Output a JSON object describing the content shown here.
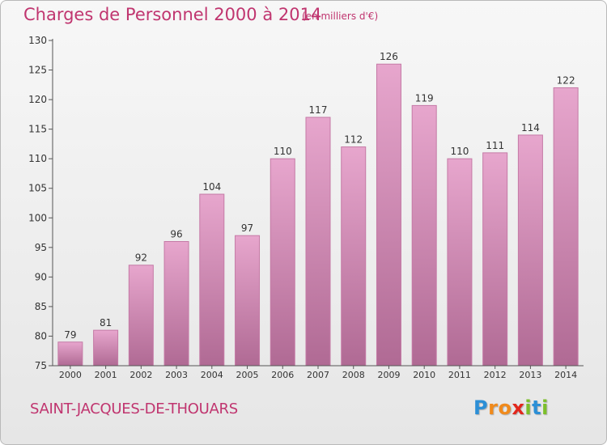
{
  "header": {
    "title": "Charges de Personnel 2000 à 2014",
    "subtitle": "(en milliers d'€)"
  },
  "footer": {
    "place": "SAINT-JACQUES-DE-THOUARS",
    "logo": {
      "text": "Proxiti",
      "letters": [
        "P",
        "r",
        "o",
        "x",
        "i",
        "t",
        "i"
      ],
      "colors": [
        "#2c8fd6",
        "#f08a1c",
        "#f08a1c",
        "#e2271c",
        "#7cbf2a",
        "#2c8fd6",
        "#7cbf2a"
      ]
    }
  },
  "chart_data": {
    "type": "bar",
    "categories": [
      "2000",
      "2001",
      "2002",
      "2003",
      "2004",
      "2005",
      "2006",
      "2007",
      "2008",
      "2009",
      "2010",
      "2011",
      "2012",
      "2013",
      "2014"
    ],
    "values": [
      79,
      81,
      92,
      96,
      104,
      97,
      110,
      117,
      112,
      126,
      119,
      110,
      111,
      114,
      122
    ],
    "ylim": [
      75,
      130
    ],
    "yticks": [
      75,
      80,
      85,
      90,
      95,
      100,
      105,
      110,
      115,
      120,
      125,
      130
    ],
    "grid": false,
    "colors": {
      "bar_top": "#e7a6cd",
      "bar_bottom": "#b06a94",
      "bar_edge": "#c57aa6",
      "axis": "#555555",
      "text": "#333333",
      "accent": "#c0356f"
    }
  }
}
